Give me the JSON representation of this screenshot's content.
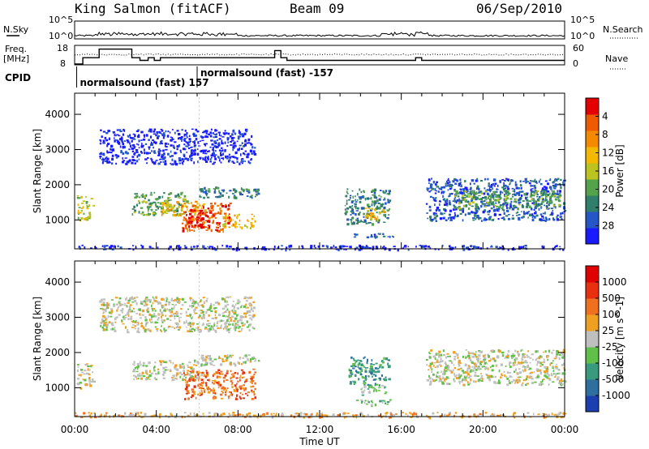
{
  "header": {
    "station": "King Salmon (fitACF)",
    "beam": "Beam 09",
    "date": "06/Sep/2010"
  },
  "summary_panel": {
    "nsky_label": "N.Sky",
    "nsearch_label": "N.Search",
    "freq_label_1": "Freq.",
    "freq_label_2": "[MHz]",
    "nave_label": "Nave",
    "cpid_label": "CPID",
    "left_ticks_top": [
      "10^5",
      "10^0"
    ],
    "right_ticks_top": [
      "10^5",
      "10^0"
    ],
    "left_ticks_freq": [
      "18",
      "8"
    ],
    "right_ticks_nave": [
      "60",
      "0"
    ],
    "cpid_entries": [
      {
        "label": "normalsound (fast) 157",
        "start_hour": 0.1
      },
      {
        "label": "normalsound (fast) -157",
        "start_hour": 6.0
      }
    ],
    "freq_steps": [
      {
        "t0": 0.0,
        "t1": 0.4,
        "f": 8.5
      },
      {
        "t0": 0.4,
        "t1": 1.2,
        "f": 12.0
      },
      {
        "t0": 1.2,
        "t1": 2.8,
        "f": 16.8
      },
      {
        "t0": 2.8,
        "t1": 3.2,
        "f": 12.0
      },
      {
        "t0": 3.2,
        "t1": 3.6,
        "f": 10.5
      },
      {
        "t0": 3.6,
        "t1": 3.9,
        "f": 12.0
      },
      {
        "t0": 3.9,
        "t1": 4.2,
        "f": 10.5
      },
      {
        "t0": 4.2,
        "t1": 9.8,
        "f": 12.0
      },
      {
        "t0": 9.8,
        "t1": 10.1,
        "f": 16.0
      },
      {
        "t0": 10.1,
        "t1": 10.4,
        "f": 12.0
      },
      {
        "t0": 10.4,
        "t1": 16.7,
        "f": 10.5
      },
      {
        "t0": 16.7,
        "t1": 17.0,
        "f": 12.0
      },
      {
        "t0": 17.0,
        "t1": 24.0,
        "f": 10.5
      }
    ]
  },
  "chart_data": [
    {
      "type": "heatmap",
      "name": "power-panel",
      "ylabel": "Slant Range [km]",
      "xlabel": "",
      "x_ticks": [
        "00:00",
        "04:00",
        "08:00",
        "12:00",
        "16:00",
        "20:00",
        "00:00"
      ],
      "y_ticks": [
        "1000",
        "2000",
        "3000",
        "4000"
      ],
      "xlim_hours": [
        0,
        24
      ],
      "ylim_km": [
        180,
        4600
      ],
      "colorbar": {
        "label": "Power [dB]",
        "ticks": [
          "4",
          "8",
          "12",
          "16",
          "20",
          "24",
          "28"
        ],
        "colors": [
          "#1a1aff",
          "#2456c8",
          "#2f7f6a",
          "#54a34a",
          "#bcc21e",
          "#f5b800",
          "#f58a00",
          "#ee5a00",
          "#e40000"
        ]
      },
      "regions": [
        {
          "t0": 0.1,
          "t1": 0.9,
          "r0": 1000,
          "r1": 1700,
          "level": 4
        },
        {
          "t0": 2.8,
          "t1": 5.5,
          "r0": 1150,
          "r1": 1800,
          "level": 3
        },
        {
          "t0": 4.2,
          "t1": 6.4,
          "r0": 1150,
          "r1": 1550,
          "level": 5
        },
        {
          "t0": 5.2,
          "t1": 7.6,
          "r0": 700,
          "r1": 1500,
          "level": 7
        },
        {
          "t0": 5.4,
          "t1": 6.6,
          "r0": 800,
          "r1": 1300,
          "level": 8
        },
        {
          "t0": 7.2,
          "t1": 8.8,
          "r0": 800,
          "r1": 1200,
          "level": 5
        },
        {
          "t0": 6.0,
          "t1": 9.0,
          "r0": 1650,
          "r1": 1950,
          "level": 2
        },
        {
          "t0": 13.2,
          "t1": 15.4,
          "r0": 900,
          "r1": 1900,
          "level": 2
        },
        {
          "t0": 14.2,
          "t1": 15.2,
          "r0": 1000,
          "r1": 1350,
          "level": 5
        },
        {
          "t0": 13.6,
          "t1": 15.6,
          "r0": 520,
          "r1": 650,
          "level": 1
        },
        {
          "t0": 17.2,
          "t1": 24.0,
          "r0": 1000,
          "r1": 2200,
          "level": 1
        },
        {
          "t0": 18.5,
          "t1": 23.8,
          "r0": 1350,
          "r1": 1850,
          "level": 3
        },
        {
          "t0": 1.2,
          "t1": 8.8,
          "r0": 2600,
          "r1": 3600,
          "level": 0
        },
        {
          "t0": 0.0,
          "t1": 24.0,
          "r0": 180,
          "r1": 300,
          "level": 0
        }
      ]
    },
    {
      "type": "heatmap",
      "name": "velocity-panel",
      "ylabel": "Slant Range [km]",
      "xlabel": "Time UT",
      "x_ticks": [
        "00:00",
        "04:00",
        "08:00",
        "12:00",
        "16:00",
        "20:00",
        "00:00"
      ],
      "y_ticks": [
        "1000",
        "2000",
        "3000",
        "4000"
      ],
      "xlim_hours": [
        0,
        24
      ],
      "ylim_km": [
        180,
        4600
      ],
      "colorbar": {
        "label": "Velocity [m s^-1]",
        "ticks": [
          "1000",
          "500",
          "100",
          "25",
          "-25",
          "-100",
          "-500",
          "-1000"
        ],
        "colors": [
          "#1c3fb0",
          "#2f6fa0",
          "#3a9a7e",
          "#60c04a",
          "#bfbfbf",
          "#f0a020",
          "#f07020",
          "#e83010",
          "#e00000"
        ]
      },
      "regions": [
        {
          "t0": 0.1,
          "t1": 0.9,
          "r0": 1000,
          "r1": 1700,
          "level": 4
        },
        {
          "t0": 2.8,
          "t1": 6.2,
          "r0": 1250,
          "r1": 1800,
          "level": 4
        },
        {
          "t0": 5.3,
          "t1": 8.8,
          "r0": 700,
          "r1": 1550,
          "level": 6
        },
        {
          "t0": 6.0,
          "t1": 9.0,
          "r0": 1650,
          "r1": 1950,
          "level": 4
        },
        {
          "t0": 13.4,
          "t1": 15.4,
          "r0": 1100,
          "r1": 1900,
          "level": 2
        },
        {
          "t0": 14.0,
          "t1": 15.2,
          "r0": 800,
          "r1": 1100,
          "level": 3
        },
        {
          "t0": 13.6,
          "t1": 15.6,
          "r0": 520,
          "r1": 680,
          "level": 3
        },
        {
          "t0": 17.2,
          "t1": 24.0,
          "r0": 1100,
          "r1": 2100,
          "level": 4
        },
        {
          "t0": 1.2,
          "t1": 8.8,
          "r0": 2600,
          "r1": 3600,
          "level": 4
        },
        {
          "t0": 0.0,
          "t1": 24.0,
          "r0": 180,
          "r1": 320,
          "level": 5
        }
      ]
    }
  ]
}
